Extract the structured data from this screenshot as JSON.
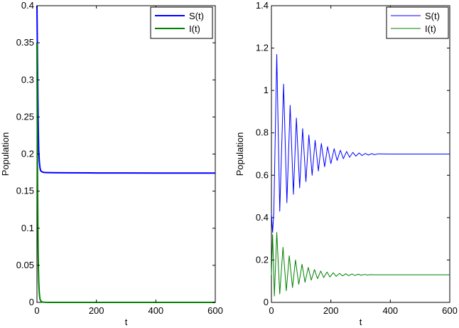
{
  "chart_data": [
    {
      "type": "line",
      "xlabel": "t",
      "ylabel": "Population",
      "xlim": [
        0,
        600
      ],
      "ylim": [
        0,
        0.4
      ],
      "xticks": [
        0,
        200,
        400,
        600
      ],
      "yticks": [
        0,
        0.05,
        0.1,
        0.15,
        0.2,
        0.25,
        0.3,
        0.35,
        0.4
      ],
      "xtick_labels": [
        "0",
        "200",
        "400",
        "600"
      ],
      "ytick_labels": [
        "0",
        "0.05",
        "0.1",
        "0.15",
        "0.2",
        "0.25",
        "0.3",
        "0.35",
        "0.4"
      ],
      "grid": false,
      "legend_position": "top-right",
      "series": [
        {
          "name": "S(t)",
          "color": "#0000ff",
          "x": [
            0,
            1,
            2,
            3,
            4,
            5,
            6,
            8,
            10,
            12,
            15,
            20,
            25,
            30,
            40,
            60,
            100,
            200,
            300,
            400,
            500,
            600
          ],
          "y": [
            0.4,
            0.36,
            0.32,
            0.28,
            0.25,
            0.225,
            0.205,
            0.19,
            0.182,
            0.178,
            0.1765,
            0.1755,
            0.1752,
            0.175,
            0.1749,
            0.1748,
            0.1747,
            0.1745,
            0.1745,
            0.1744,
            0.1743,
            0.1743
          ]
        },
        {
          "name": "I(t)",
          "color": "#008000",
          "x": [
            0,
            1,
            2,
            3,
            4,
            5,
            6,
            8,
            10,
            12,
            15,
            20,
            25,
            30,
            40,
            60,
            100,
            200,
            300,
            400,
            500,
            600
          ],
          "y": [
            0.35,
            0.25,
            0.17,
            0.11,
            0.07,
            0.045,
            0.028,
            0.012,
            0.005,
            0.0025,
            0.001,
            0.0004,
            0.0002,
            0.0001,
            0.0,
            0.0,
            0.0,
            0.0,
            0.0,
            0.0,
            0.0,
            0.0
          ]
        }
      ]
    },
    {
      "type": "line",
      "xlabel": "t",
      "ylabel": "Population",
      "xlim": [
        0,
        600
      ],
      "ylim": [
        0,
        1.4
      ],
      "xticks": [
        0,
        200,
        400,
        600
      ],
      "yticks": [
        0,
        0.2,
        0.4,
        0.6,
        0.8,
        1.0,
        1.2,
        1.4
      ],
      "xtick_labels": [
        "0",
        "200",
        "400",
        "600"
      ],
      "ytick_labels": [
        "0",
        "0.2",
        "0.4",
        "0.6",
        "0.8",
        "1",
        "1.2",
        "1.4"
      ],
      "grid": false,
      "legend_position": "top-right",
      "series": [
        {
          "name": "S(t)",
          "color": "#0000ff",
          "x": [
            0,
            4,
            8,
            18,
            28,
            41,
            52,
            63,
            74,
            84,
            95,
            105,
            116,
            126,
            137,
            147,
            158,
            168,
            179,
            189,
            200,
            211,
            221,
            232,
            242,
            253,
            263,
            274,
            284,
            295,
            305,
            316,
            326,
            337,
            347,
            358,
            400,
            500,
            600
          ],
          "y": [
            0.42,
            0.33,
            0.42,
            1.17,
            0.43,
            1.03,
            0.47,
            0.93,
            0.51,
            0.87,
            0.54,
            0.82,
            0.57,
            0.79,
            0.6,
            0.765,
            0.62,
            0.75,
            0.64,
            0.735,
            0.655,
            0.725,
            0.67,
            0.718,
            0.678,
            0.712,
            0.685,
            0.708,
            0.69,
            0.705,
            0.693,
            0.703,
            0.695,
            0.702,
            0.697,
            0.701,
            0.7,
            0.7,
            0.7
          ]
        },
        {
          "name": "I(t)",
          "color": "#008000",
          "x": [
            0,
            4,
            10,
            18,
            28,
            39,
            50,
            60,
            71,
            81,
            92,
            103,
            113,
            124,
            134,
            145,
            155,
            166,
            176,
            187,
            197,
            208,
            218,
            229,
            239,
            250,
            260,
            271,
            281,
            292,
            302,
            313,
            323,
            334,
            345,
            400,
            500,
            600
          ],
          "y": [
            0.13,
            0.32,
            0.03,
            0.33,
            0.04,
            0.26,
            0.055,
            0.22,
            0.07,
            0.2,
            0.085,
            0.18,
            0.095,
            0.165,
            0.105,
            0.155,
            0.112,
            0.148,
            0.117,
            0.143,
            0.12,
            0.14,
            0.123,
            0.137,
            0.125,
            0.135,
            0.126,
            0.134,
            0.127,
            0.133,
            0.128,
            0.132,
            0.129,
            0.131,
            0.13,
            0.13,
            0.13,
            0.13
          ]
        }
      ]
    }
  ]
}
